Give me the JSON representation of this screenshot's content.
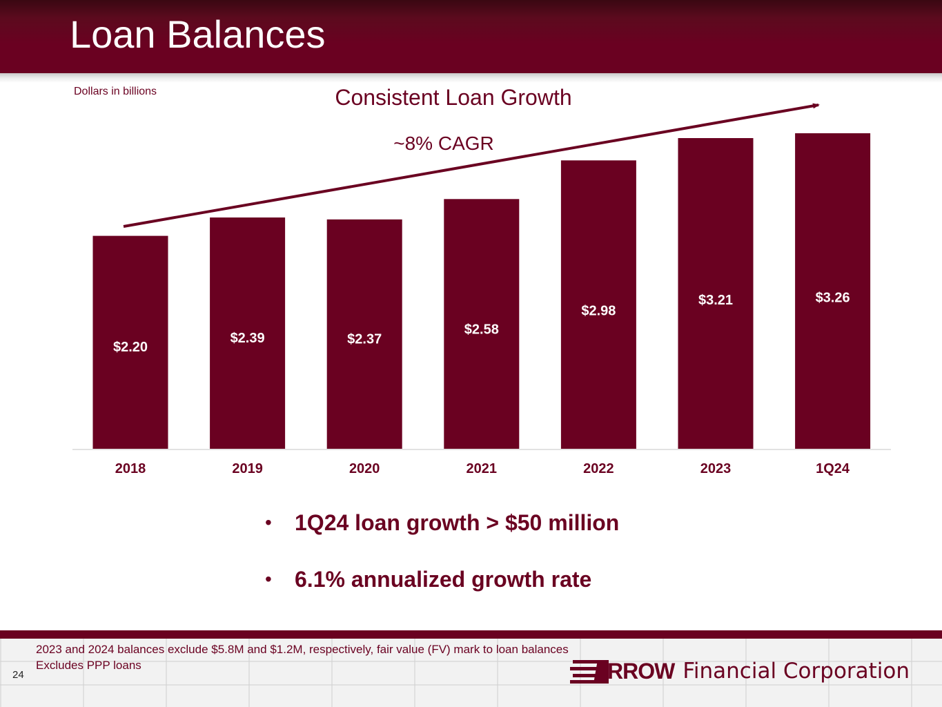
{
  "slide": {
    "title": "Loan Balances",
    "units_label": "Dollars in billions",
    "page_number": "24"
  },
  "chart_data": {
    "type": "bar",
    "annotation_title": "Consistent Loan Growth",
    "annotation_cagr": "~8% CAGR",
    "categories": [
      "2018",
      "2019",
      "2020",
      "2021",
      "2022",
      "2023",
      "1Q24"
    ],
    "values": [
      2.2,
      2.39,
      2.37,
      2.58,
      2.98,
      3.21,
      3.26
    ],
    "data_labels": [
      "$2.20",
      "$2.39",
      "$2.37",
      "$2.58",
      "$2.98",
      "$3.21",
      "$3.26"
    ],
    "ylim": [
      0,
      3.26
    ],
    "grid": false,
    "legend": "none",
    "bar_color": "#6a0121",
    "label_color": "#ffffff"
  },
  "bullets": [
    "1Q24 loan growth > $50 million",
    "6.1% annualized growth rate"
  ],
  "bullet_symbol": "•",
  "footnotes": [
    "2023 and 2024 balances exclude $5.8M and $1.2M, respectively, fair value (FV) mark to loan balances",
    "Excludes PPP loans"
  ],
  "logo": {
    "word": "RROW",
    "rest": "Financial Corporation",
    "color": "#6a0121"
  },
  "colors": {
    "brand": "#6a0121",
    "background": "#ffffff"
  }
}
